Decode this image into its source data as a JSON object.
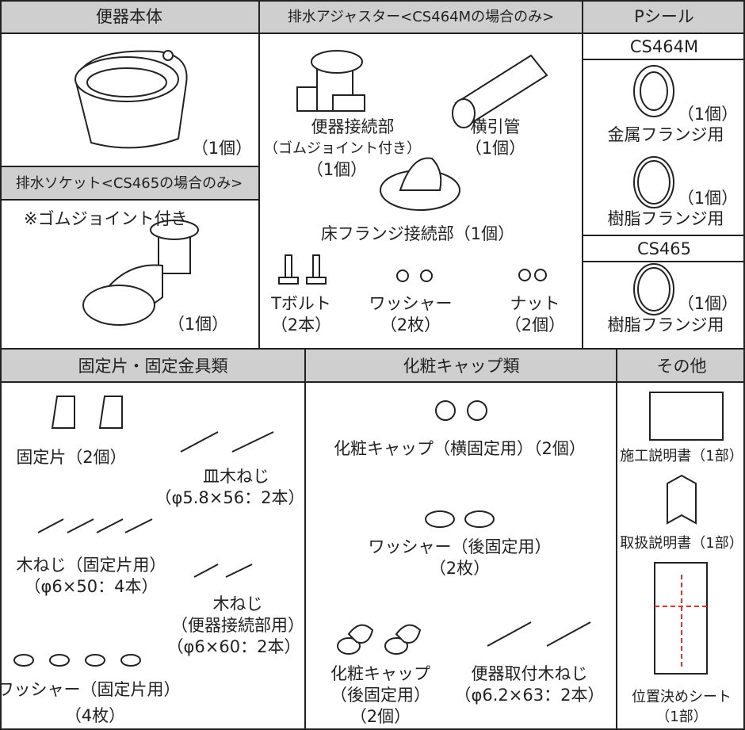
{
  "toilet_body": {
    "header": "便器本体",
    "quantity": "（1個）"
  },
  "drain_socket": {
    "header": "排水ソケット<CS465の場合のみ>",
    "note": "※ゴムジョイント付き",
    "quantity": "（1個）"
  },
  "drain_adjuster": {
    "header": "排水アジャスター<CS464Mの場合のみ>",
    "items": [
      {
        "lines": [
          "便器接続部",
          "（ゴムジョイント付き）",
          "（1個）"
        ]
      },
      {
        "lines": [
          "横引管",
          "（1個）"
        ]
      },
      {
        "lines": [
          "床フランジ接続部（1個）"
        ]
      },
      {
        "lines": [
          "Tボルト",
          "（2本）"
        ]
      },
      {
        "lines": [
          "ワッシャー",
          "（2枚）"
        ]
      },
      {
        "lines": [
          "ナット",
          "（2個）"
        ]
      }
    ]
  },
  "p_seal": {
    "header": "Pシール",
    "groups": [
      {
        "model": "CS464M",
        "items": [
          {
            "quantity": "（1個）",
            "usage": "金属フランジ用"
          },
          {
            "quantity": "（1個）",
            "usage": "樹脂フランジ用"
          }
        ]
      },
      {
        "model": "CS465",
        "items": [
          {
            "quantity": "（1個）",
            "usage": "樹脂フランジ用"
          }
        ]
      }
    ]
  },
  "fixings": {
    "header": "固定片・固定金具類",
    "items": [
      {
        "lines": [
          "固定片（2個）"
        ]
      },
      {
        "lines": [
          "皿木ねじ",
          "（φ5.8×56：2本）"
        ]
      },
      {
        "lines": [
          "木ねじ（固定片用）",
          "（φ6×50：4本）"
        ]
      },
      {
        "lines": [
          "木ねじ",
          "（便器接続部用）",
          "（φ6×60：2本）"
        ]
      },
      {
        "lines": [
          "ワッシャー（固定片用）",
          "（4枚）"
        ]
      }
    ]
  },
  "caps": {
    "header": "化粧キャップ類",
    "items": [
      {
        "lines": [
          "化粧キャップ（横固定用）（2個）"
        ]
      },
      {
        "lines": [
          "ワッシャー（後固定用）",
          "（2枚）"
        ]
      },
      {
        "lines": [
          "化粧キャップ",
          "（後固定用）",
          "（2個）"
        ]
      },
      {
        "lines": [
          "便器取付木ねじ",
          "（φ6.2×63：2本）"
        ]
      }
    ]
  },
  "others": {
    "header": "その他",
    "items": [
      {
        "lines": [
          "施工説明書（1部）"
        ]
      },
      {
        "lines": [
          "取扱説明書（1部）"
        ]
      },
      {
        "lines": [
          "位置決めシート",
          "（1部）"
        ]
      }
    ]
  }
}
